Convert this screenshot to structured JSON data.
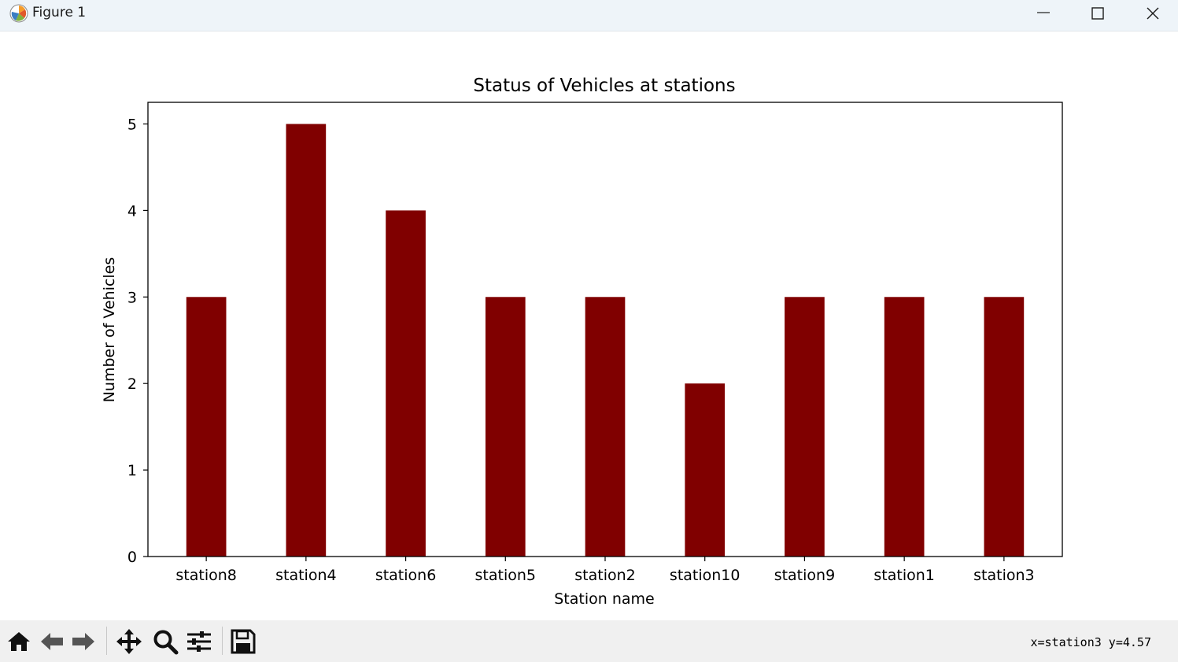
{
  "window": {
    "title": "Figure 1",
    "icon": "matplotlib-icon"
  },
  "window_controls": [
    "minimize-icon",
    "maximize-icon",
    "close-icon"
  ],
  "toolbar": {
    "tools": [
      "home-icon",
      "back-arrow-icon",
      "forward-arrow-icon",
      "pan-icon",
      "zoom-icon",
      "configure-subplots-icon",
      "save-icon"
    ],
    "coords": "x=station3 y=4.57"
  },
  "chart_data": {
    "type": "bar",
    "title": "Status of Vehicles at stations",
    "xlabel": "Station name",
    "ylabel": "Number of Vehicles",
    "categories": [
      "station8",
      "station4",
      "station6",
      "station5",
      "station2",
      "station10",
      "station9",
      "station1",
      "station3"
    ],
    "values": [
      3,
      5,
      4,
      3,
      3,
      2,
      3,
      3,
      3
    ],
    "ylim": [
      0,
      5.25
    ],
    "yticks": [
      0,
      1,
      2,
      3,
      4,
      5
    ],
    "bar_color": "#800000",
    "grid": false,
    "legend": "none"
  }
}
